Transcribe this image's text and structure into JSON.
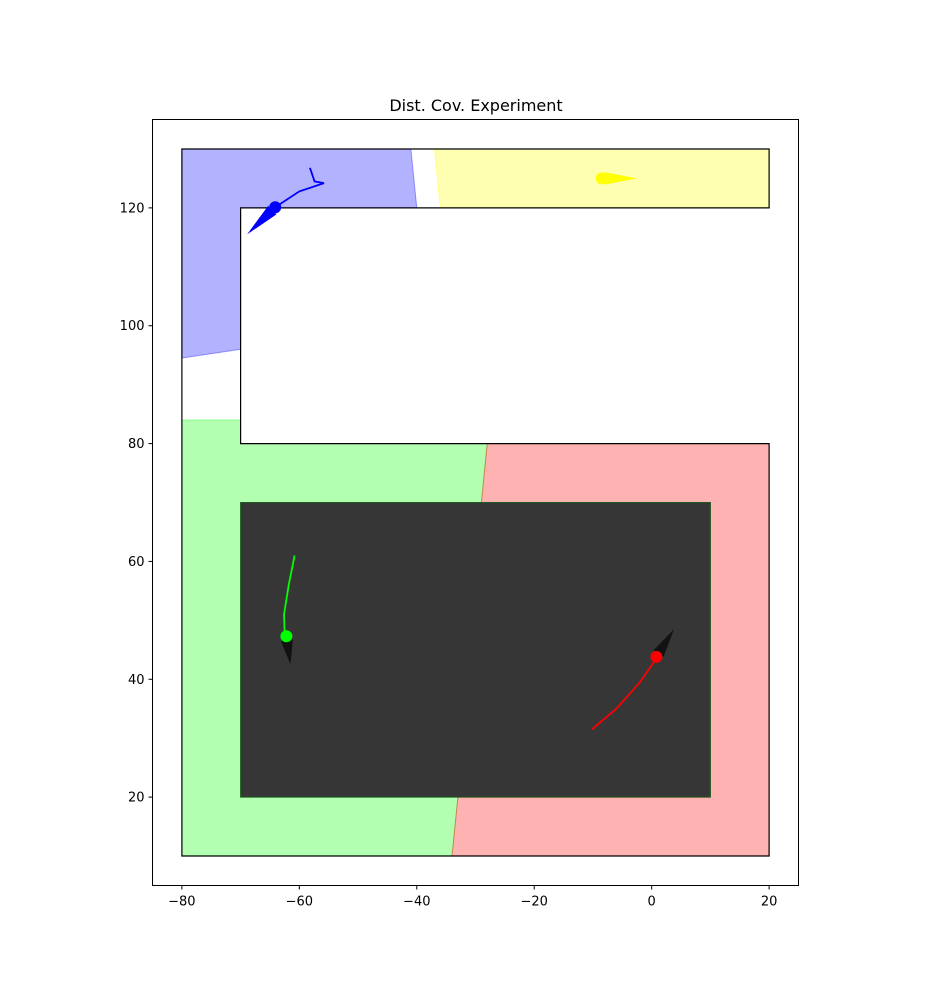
{
  "chart_data": {
    "type": "scatter",
    "title": "Dist. Cov. Experiment",
    "xlabel": "",
    "ylabel": "",
    "xlim": [
      -85,
      25
    ],
    "ylim": [
      5,
      135
    ],
    "grid": false,
    "x_ticks": [
      -80,
      -60,
      -40,
      -20,
      0,
      20
    ],
    "y_ticks": [
      20,
      40,
      60,
      80,
      100,
      120
    ],
    "x_tick_labels": [
      "−80",
      "−60",
      "−40",
      "−20",
      "0",
      "20"
    ],
    "y_tick_labels": [
      "20",
      "40",
      "60",
      "80",
      "100",
      "120"
    ],
    "environment": {
      "outline": [
        [
          -80,
          10
        ],
        [
          20,
          10
        ],
        [
          20,
          80
        ],
        [
          -70,
          80
        ],
        [
          -70,
          120
        ],
        [
          20,
          120
        ],
        [
          20,
          130
        ],
        [
          -80,
          130
        ]
      ],
      "obstacle": [
        [
          -70,
          20
        ],
        [
          10,
          20
        ],
        [
          10,
          70
        ],
        [
          -70,
          70
        ]
      ],
      "obstacle_color": "#363636"
    },
    "regions": [
      {
        "color": "#0000ff",
        "polygon": [
          [
            -80,
            130
          ],
          [
            -41,
            130
          ],
          [
            -40,
            120
          ],
          [
            -70,
            120
          ],
          [
            -70,
            96
          ],
          [
            -80,
            94.5
          ]
        ]
      },
      {
        "color": "#ffff00",
        "polygon": [
          [
            -37,
            130
          ],
          [
            20,
            130
          ],
          [
            20,
            120
          ],
          [
            -36,
            120
          ]
        ]
      },
      {
        "color": "#00ff00",
        "polygon": [
          [
            -80,
            84
          ],
          [
            -73,
            84
          ],
          [
            -70,
            84
          ],
          [
            -70,
            80
          ],
          [
            -28,
            80
          ],
          [
            -29,
            70
          ],
          [
            -70,
            70
          ],
          [
            -70,
            20
          ],
          [
            -33,
            20
          ],
          [
            -34,
            10
          ],
          [
            -80,
            10
          ]
        ]
      },
      {
        "color": "#ff0000",
        "polygon": [
          [
            -28,
            80
          ],
          [
            20,
            80
          ],
          [
            20,
            10
          ],
          [
            -34,
            10
          ],
          [
            -33,
            20
          ],
          [
            10,
            20
          ],
          [
            10,
            70
          ],
          [
            -29,
            70
          ]
        ]
      }
    ],
    "agents": [
      {
        "color": "#0000ff",
        "trail": [
          [
            -58.2,
            126.8
          ],
          [
            -57.4,
            124.5
          ],
          [
            -55.8,
            124.2
          ],
          [
            -60,
            122.8
          ],
          [
            -63.5,
            120.5
          ]
        ],
        "position": [
          -64.1,
          120.1
        ],
        "heading_point": [
          -68.9,
          115.5
        ]
      },
      {
        "color": "#ffff00",
        "trail": [],
        "position": [
          -8.5,
          125
        ],
        "heading_point": [
          -2.5,
          125
        ]
      },
      {
        "color": "#00ff00",
        "trail": [
          [
            -60.8,
            61
          ],
          [
            -61.8,
            56
          ],
          [
            -62.6,
            51
          ],
          [
            -62.5,
            48.2
          ]
        ],
        "position": [
          -62.2,
          47.3
        ],
        "heading_point": [
          -61.5,
          42.5
        ]
      },
      {
        "color": "#ff0000",
        "trail": [
          [
            -10.2,
            31.5
          ],
          [
            -6,
            35
          ],
          [
            -2,
            39.5
          ],
          [
            0.6,
            43.2
          ]
        ],
        "position": [
          0.8,
          43.8
        ],
        "heading_point": [
          3.8,
          48.5
        ]
      }
    ]
  }
}
